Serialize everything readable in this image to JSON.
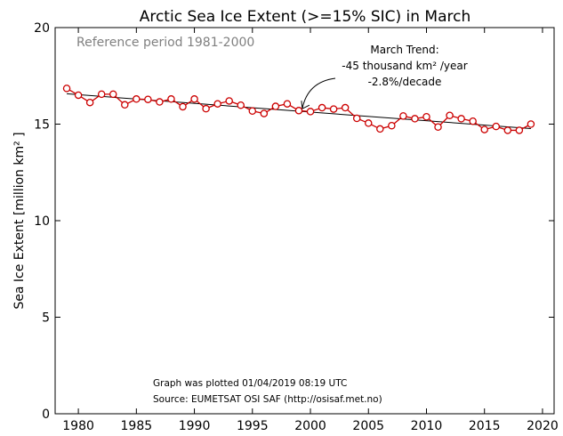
{
  "chart_data": {
    "type": "line",
    "title": "Arctic Sea Ice Extent (>=15% SIC) in March",
    "ylabel": "Sea Ice Extent [million km² ]",
    "xlabel": "",
    "xlim": [
      1978,
      2021
    ],
    "ylim": [
      0,
      20
    ],
    "x_ticks": [
      1980,
      1985,
      1990,
      1995,
      2000,
      2005,
      2010,
      2015,
      2020
    ],
    "y_ticks": [
      0,
      5,
      10,
      15,
      20
    ],
    "grid": false,
    "legend": "none",
    "reference_text": "Reference period 1981-2000",
    "trend_annotation": {
      "line1": "March Trend:",
      "line2": "-45 thousand km² /year",
      "line3": "-2.8%/decade",
      "arrow_target": [
        1999.3,
        15.8
      ]
    },
    "footer": {
      "line1": "Graph was plotted 01/04/2019 08:19 UTC",
      "line2": "Source: EUMETSAT OSI SAF (http://osisaf.met.no)"
    },
    "series": [
      {
        "color": "#cc0000",
        "marker": "circle-hollow",
        "x": [
          1979,
          1980,
          1981,
          1982,
          1983,
          1984,
          1985,
          1986,
          1987,
          1988,
          1989,
          1990,
          1991,
          1992,
          1993,
          1994,
          1995,
          1996,
          1997,
          1998,
          1999,
          2000,
          2001,
          2002,
          2003,
          2004,
          2005,
          2006,
          2007,
          2008,
          2009,
          2010,
          2011,
          2012,
          2013,
          2014,
          2015,
          2016,
          2017,
          2018,
          2019
        ],
        "values": [
          16.85,
          16.5,
          16.12,
          16.55,
          16.55,
          16.0,
          16.3,
          16.28,
          16.15,
          16.3,
          15.9,
          16.3,
          15.8,
          16.05,
          16.2,
          15.98,
          15.68,
          15.55,
          15.92,
          16.05,
          15.7,
          15.65,
          15.85,
          15.78,
          15.85,
          15.3,
          15.05,
          14.75,
          14.92,
          15.42,
          15.28,
          15.38,
          14.85,
          15.45,
          15.28,
          15.15,
          14.72,
          14.88,
          14.68,
          14.68,
          15.0
        ]
      }
    ],
    "trend_line": {
      "color": "#000000",
      "x": [
        1979,
        2019
      ],
      "values": [
        16.57,
        14.77
      ]
    }
  }
}
